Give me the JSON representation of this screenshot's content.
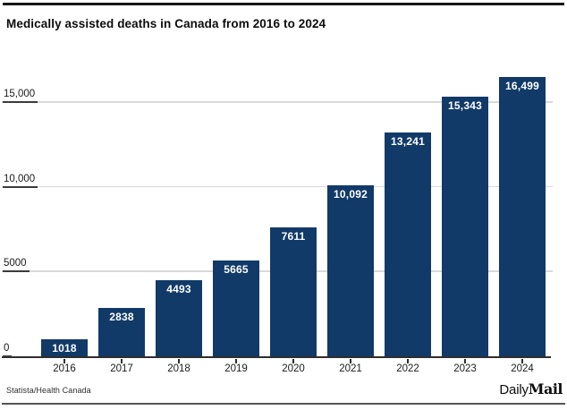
{
  "chart_data": {
    "type": "bar",
    "title": "Medically assisted deaths in Canada from 2016 to 2024",
    "categories": [
      "2016",
      "2017",
      "2018",
      "2019",
      "2020",
      "2021",
      "2022",
      "2023",
      "2024"
    ],
    "values": [
      1018,
      2838,
      4493,
      5665,
      7611,
      10092,
      13241,
      15343,
      16499
    ],
    "value_labels": [
      "1018",
      "2838",
      "4493",
      "5665",
      "7611",
      "10,092",
      "13,241",
      "15,343",
      "16,499"
    ],
    "y_ticks": [
      {
        "value": 0,
        "label": "0"
      },
      {
        "value": 5000,
        "label": "5000"
      },
      {
        "value": 10000,
        "label": "10,000"
      },
      {
        "value": 15000,
        "label": "15,000"
      }
    ],
    "ylim": [
      0,
      16700
    ],
    "xlabel": "",
    "ylabel": "",
    "grid": "horizontal-light",
    "legend": "none",
    "bar_color": "#113a68",
    "value_label_color": "#ffffff"
  },
  "footer": {
    "source": "Statista/Health Canada",
    "logo": {
      "daily": "Daily",
      "mail": "Mail"
    }
  },
  "colors": {
    "background": "#ffffff",
    "bar": "#113a68",
    "gridline": "#d9d9d9",
    "axis": "#2e2e2e",
    "tick_underline": "#3a3a3a",
    "title_text": "#0d0d0d",
    "top_rule": "#161616",
    "bottom_rule": "#555555"
  }
}
